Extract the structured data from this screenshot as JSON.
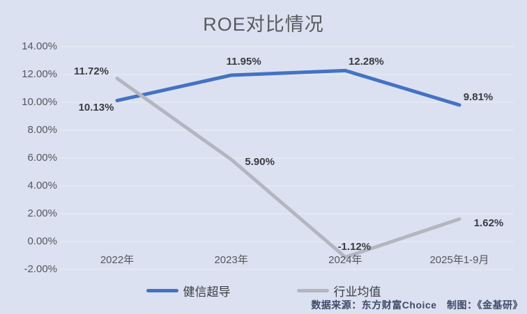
{
  "chart_data": {
    "type": "line",
    "title": "ROE对比情况",
    "categories": [
      "2022年",
      "2023年",
      "2024年",
      "2025年1-9月"
    ],
    "series": [
      {
        "id": "jianxin-superconductor",
        "name": "健信超导",
        "color": "#4472C4",
        "values": [
          10.13,
          11.95,
          12.28,
          9.81
        ],
        "labels": [
          "10.13%",
          "11.95%",
          "12.28%",
          "9.81%"
        ],
        "label_offsets": [
          [
            -30,
            11
          ],
          [
            18,
            -19
          ],
          [
            30,
            -12
          ],
          [
            27,
            -11
          ]
        ]
      },
      {
        "id": "industry-average",
        "name": "行业均值",
        "color": "#B2B6C0",
        "values": [
          11.72,
          5.9,
          -1.12,
          1.62
        ],
        "labels": [
          "11.72%",
          "5.90%",
          "-1.12%",
          "1.62%"
        ],
        "label_offsets": [
          [
            -37,
            -10
          ],
          [
            41,
            4
          ],
          [
            13,
            -14
          ],
          [
            42,
            6
          ]
        ]
      }
    ],
    "yticks": [
      {
        "v": 14,
        "label": "14.00%"
      },
      {
        "v": 12,
        "label": "12.00%"
      },
      {
        "v": 10,
        "label": "10.00%"
      },
      {
        "v": 8,
        "label": "8.00%"
      },
      {
        "v": 6,
        "label": "6.00%"
      },
      {
        "v": 4,
        "label": "4.00%"
      },
      {
        "v": 2,
        "label": "2.00%"
      },
      {
        "v": 0,
        "label": "0.00%"
      },
      {
        "v": -2,
        "label": "-2.00%"
      }
    ],
    "ylim": [
      -2,
      14
    ],
    "grid": true,
    "legend_position": "bottom"
  },
  "footer": {
    "source_text": "数据来源：东方财富Choice　制图：《金基研》"
  },
  "colors": {
    "background": "#DBE1F1",
    "gridline": "#E5EAF3",
    "axis_text": "#55575C",
    "data_label_text": "#3A3C40",
    "title_text": "#595A5E",
    "footer_text": "#3E4A66"
  }
}
